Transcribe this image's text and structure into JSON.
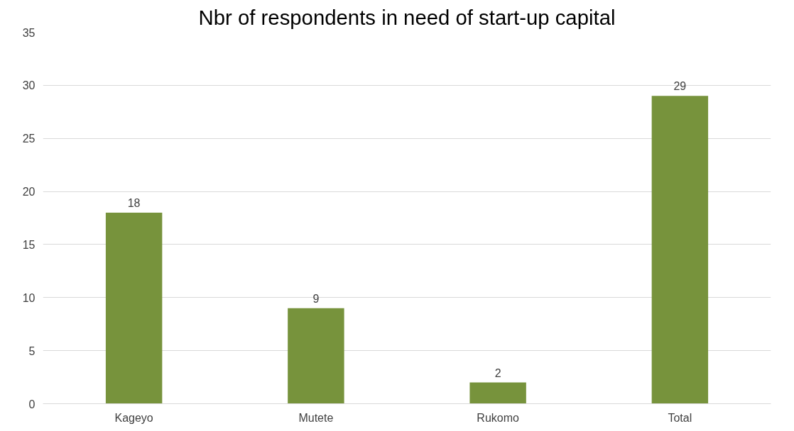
{
  "chart_data": {
    "type": "bar",
    "title": "Nbr of respondents in need of start-up capital",
    "categories": [
      "Kageyo",
      "Mutete",
      "Rukomo",
      "Total"
    ],
    "values": [
      18,
      9,
      2,
      29
    ],
    "color": "#77933c",
    "ylim": [
      0,
      35
    ],
    "yticks": [
      0,
      5,
      10,
      15,
      20,
      25,
      30,
      35
    ],
    "grid": "y",
    "data_labels": true
  }
}
